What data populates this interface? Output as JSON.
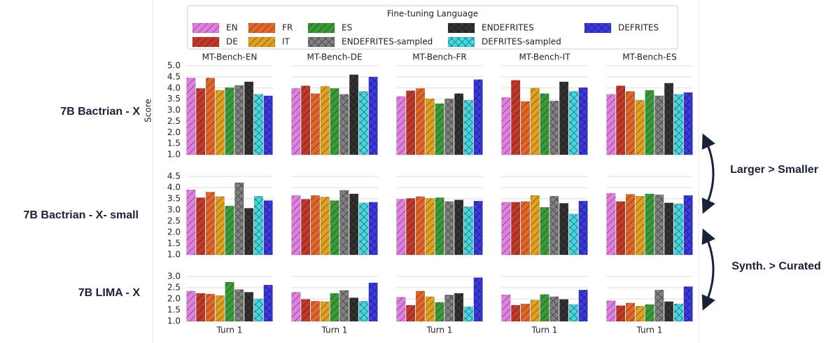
{
  "chart_data": {
    "type": "bar",
    "legend_title": "Fine-tuning Language",
    "ylabel": "Score",
    "xlabel": "Turn 1",
    "grid": true,
    "columns": [
      "MT-Bench-EN",
      "MT-Bench-DE",
      "MT-Bench-FR",
      "MT-Bench-IT",
      "MT-Bench-ES"
    ],
    "rows": [
      {
        "label": "7B Bactrian - X",
        "ylim": [
          1,
          5
        ],
        "yticks": [
          {
            "value": 1,
            "label": "1.0"
          },
          1.5,
          {
            "value": 2,
            "label": "2.0"
          },
          2.5,
          {
            "value": 3,
            "label": "3.0"
          },
          3.5,
          {
            "value": 4,
            "label": "4.0"
          },
          4.5,
          {
            "value": 5,
            "label": "5.0"
          }
        ]
      },
      {
        "label": "7B Bactrian - X- small",
        "ylim": [
          1,
          4.5
        ],
        "yticks": [
          {
            "value": 1,
            "label": "1.0"
          },
          1.5,
          {
            "value": 2,
            "label": "2.0"
          },
          2.5,
          {
            "value": 3,
            "label": "3.0"
          },
          3.5,
          {
            "value": 4,
            "label": "4.0"
          },
          4.5
        ]
      },
      {
        "label": "7B LIMA - X",
        "ylim": [
          1,
          3.2
        ],
        "yticks": [
          {
            "value": 1,
            "label": "1.0"
          },
          1.5,
          {
            "value": 2,
            "label": "2.0"
          },
          2.5,
          {
            "value": 3,
            "label": "3.0"
          }
        ]
      }
    ],
    "series": [
      {
        "name": "EN",
        "color": "#e07fe0",
        "hatch": "/",
        "values": [
          [
            4.45,
            3.98,
            3.62,
            3.58,
            3.72
          ],
          [
            3.9,
            3.65,
            3.48,
            3.35,
            3.75
          ],
          [
            2.35,
            2.3,
            2.08,
            2.18,
            1.92
          ]
        ]
      },
      {
        "name": "DE",
        "color": "#c0392b",
        "hatch": "/",
        "values": [
          [
            3.98,
            4.1,
            3.88,
            4.35,
            4.1
          ],
          [
            3.55,
            3.48,
            3.52,
            3.35,
            3.38
          ],
          [
            2.25,
            1.98,
            1.72,
            1.72,
            1.7
          ]
        ]
      },
      {
        "name": "FR",
        "color": "#e0662a",
        "hatch": "/",
        "values": [
          [
            4.45,
            3.75,
            3.98,
            3.4,
            3.85
          ],
          [
            3.8,
            3.65,
            3.6,
            3.38,
            3.7
          ],
          [
            2.22,
            1.9,
            2.35,
            1.78,
            1.82
          ]
        ]
      },
      {
        "name": "IT",
        "color": "#e0a020",
        "hatch": "/",
        "values": [
          [
            3.9,
            4.08,
            3.52,
            4.0,
            3.45
          ],
          [
            3.6,
            3.58,
            3.52,
            3.65,
            3.62
          ],
          [
            2.15,
            1.88,
            2.1,
            1.95,
            1.68
          ]
        ]
      },
      {
        "name": "ES",
        "color": "#3a9a3a",
        "hatch": "/",
        "values": [
          [
            4.02,
            3.98,
            3.3,
            3.75,
            3.9
          ],
          [
            3.18,
            3.42,
            3.55,
            3.12,
            3.72
          ],
          [
            2.75,
            2.25,
            1.85,
            2.2,
            1.75
          ]
        ]
      },
      {
        "name": "ENDEFRITES-sampled",
        "color": "#808080",
        "hatch": "x",
        "values": [
          [
            4.12,
            3.72,
            3.52,
            3.42,
            3.65
          ],
          [
            4.22,
            3.88,
            3.38,
            3.62,
            3.68
          ],
          [
            2.42,
            2.38,
            2.18,
            2.1,
            2.4
          ]
        ]
      },
      {
        "name": "ENDEFRITES",
        "color": "#333333",
        "hatch": "x",
        "values": [
          [
            4.28,
            4.6,
            3.75,
            4.28,
            4.22
          ],
          [
            3.08,
            3.72,
            3.45,
            3.3,
            3.32
          ],
          [
            2.3,
            2.05,
            2.25,
            1.98,
            1.88
          ]
        ]
      },
      {
        "name": "DEFRITES-sampled",
        "color": "#45d8e0",
        "hatch": "x",
        "values": [
          [
            3.72,
            3.85,
            3.45,
            3.85,
            3.72
          ],
          [
            3.62,
            3.32,
            3.15,
            2.82,
            3.28
          ],
          [
            2.0,
            1.9,
            1.65,
            1.75,
            1.78
          ]
        ]
      },
      {
        "name": "DEFRITES",
        "color": "#3a3ae0",
        "hatch": "x",
        "values": [
          [
            3.65,
            4.5,
            4.38,
            4.02,
            3.8
          ],
          [
            3.42,
            3.35,
            3.4,
            3.4,
            3.65
          ],
          [
            2.62,
            2.72,
            2.95,
            2.4,
            2.55
          ]
        ]
      }
    ],
    "annotations": [
      "Larger > Smaller",
      "Synth. > Curated"
    ]
  }
}
